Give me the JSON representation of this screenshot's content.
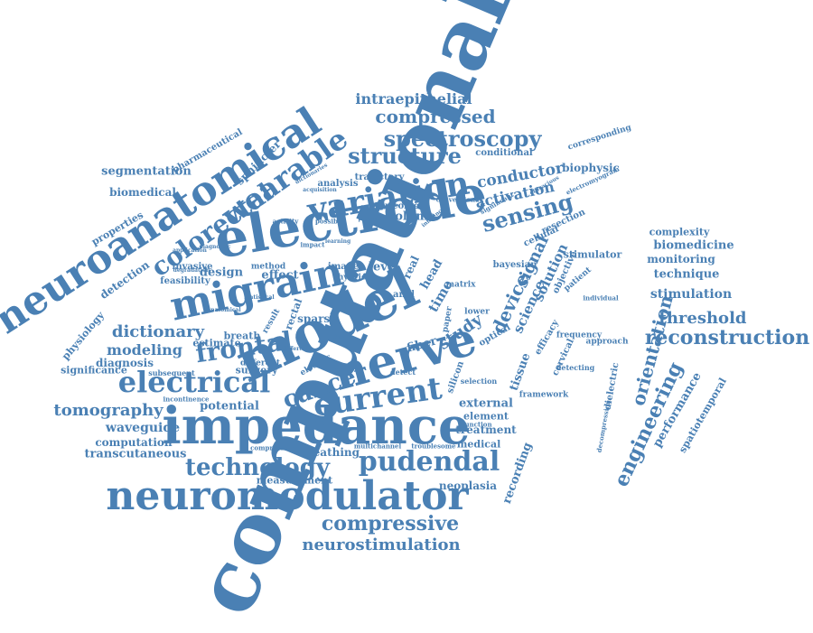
{
  "palette": {
    "word_color": "#4a80b4",
    "background": "#ffffff"
  },
  "words": [
    "computational",
    "model",
    "nerve",
    "electrode",
    "impedance",
    "neuromodulator",
    "neuroanatomical",
    "migraine",
    "current",
    "variation",
    "pudendal",
    "technology",
    "cancer",
    "electrical",
    "colorectal",
    "frontal",
    "wearable",
    "structure",
    "spectroscopy",
    "sensing",
    "compressed",
    "compressive",
    "neurostimulation",
    "reconstruction",
    "engineering",
    "orientation",
    "device",
    "signal",
    "dictionary",
    "modeling",
    "tomography",
    "threshold",
    "segmentation",
    "biomedical",
    "properties",
    "physiology",
    "significance",
    "waveguide",
    "computation",
    "transcutaneous",
    "measurement",
    "breathing",
    "neoplasia",
    "recording",
    "intraepithelial",
    "conductor",
    "activation",
    "study",
    "science",
    "solution",
    "stimulation",
    "technique",
    "monitoring",
    "biomedicine",
    "complexity",
    "stimulator",
    "biophysic",
    "corresponding",
    "external",
    "treatment",
    "medical",
    "element",
    "tissue",
    "fiber",
    "sparse",
    "diagnosis",
    "estimate",
    "surgery",
    "breath",
    "potential",
    "different",
    "subsequent",
    "feasibility",
    "invasive",
    "design",
    "effect",
    "level",
    "volume",
    "outcome",
    "cellular",
    "resection",
    "performance",
    "spatiotemporal",
    "dielectric",
    "detection",
    "sphincter",
    "pharmaceutical",
    "time",
    "head",
    "real",
    "anal",
    "rectal",
    "result",
    "method",
    "image",
    "hybrid",
    "trajectory",
    "analysis",
    "conditional",
    "approach",
    "frequency",
    "detecting",
    "framework",
    "silicon",
    "optical",
    "efficacy",
    "cervical",
    "objective",
    "patient",
    "individual",
    "bayesian",
    "matrix",
    "lower",
    "paper",
    "selection",
    "multichannel",
    "troublesome",
    "compression",
    "incontinence",
    "electric",
    "impact",
    "possible",
    "activity",
    "learning",
    "diagnostic",
    "application",
    "degradation",
    "anatomical",
    "statistical",
    "electromyogram",
    "decompression",
    "significant",
    "conventional",
    "influence",
    "data",
    "difference",
    "acquisition",
    "pumped",
    "efficacious",
    "dictionaries",
    "function",
    "detect"
  ]
}
